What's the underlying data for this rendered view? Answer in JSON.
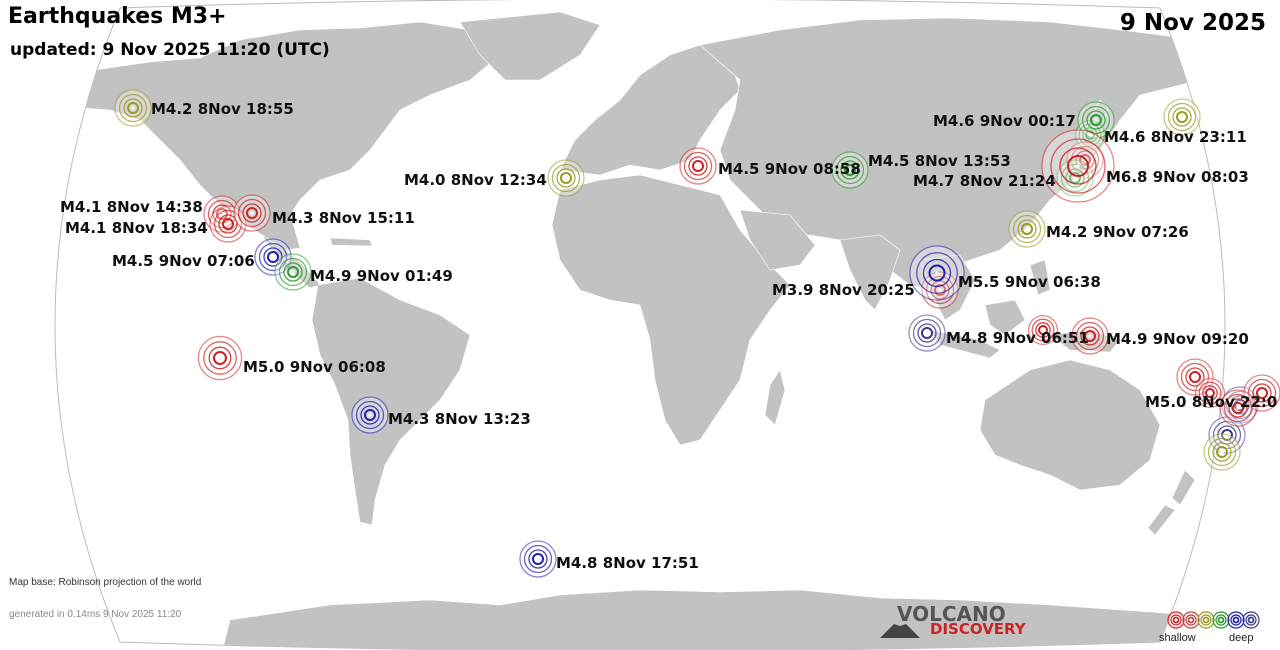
{
  "title": "Earthquakes M3+",
  "updated": "updated:  9 Nov 2025 11:20 (UTC)",
  "date": "9 Nov 2025",
  "map_base": "Map base: Robinson projection of the world",
  "generated": "generated in 0.14ms  9 Nov 2025 11:20",
  "logo": {
    "line1": "VOLCANO",
    "line2": "DISCOVERY"
  },
  "legend": {
    "shallow": "shallow",
    "deep": "deep",
    "colors": [
      "#cc2222",
      "#c04040",
      "#9a9a20",
      "#2a9a2a",
      "#2020b0",
      "#3a3a8a"
    ]
  },
  "colors": {
    "land": "#c2c2c2",
    "ocean": "#ffffff",
    "outline": "#bbbbbb"
  },
  "quakes": [
    {
      "label": "M4.2  8Nov 18:55",
      "color": "#9a9a20"
    },
    {
      "label": "M4.0  8Nov 12:34",
      "color": "#9a9a20"
    },
    {
      "label": "M4.5  9Nov 08:58",
      "color": "#cc2222"
    },
    {
      "label": "M4.5  8Nov 13:53",
      "color": "#2a9a2a"
    },
    {
      "label": "M4.6  9Nov 00:17",
      "color": "#2a9a2a"
    },
    {
      "label": "M4.6  8Nov 23:11",
      "color": "#9a9a20"
    },
    {
      "label": "M4.7  8Nov 21:24",
      "color": "#2a9a2a"
    },
    {
      "label": "M6.8  9Nov 08:03",
      "color": "#cc2222"
    },
    {
      "label": "M4.1  8Nov 14:38",
      "color": "#cc2222"
    },
    {
      "label": "M4.1  8Nov 18:34",
      "color": "#cc2222"
    },
    {
      "label": "M4.3  8Nov 15:11",
      "color": "#cc2222"
    },
    {
      "label": "M4.5  9Nov 07:06",
      "color": "#2020b0"
    },
    {
      "label": "M4.9  9Nov 01:49",
      "color": "#2a9a2a"
    },
    {
      "label": "M4.2  9Nov 07:26",
      "color": "#9a9a20"
    },
    {
      "label": "M5.5  9Nov 06:38",
      "color": "#cc2222"
    },
    {
      "label": "M3.9  8Nov 20:25",
      "color": "#2020b0"
    },
    {
      "label": "M4.8  9Nov 06:51",
      "color": "#3a3a8a"
    },
    {
      "label": "M4.9  9Nov 09:20",
      "color": "#cc2222"
    },
    {
      "label": "M5.0  9Nov 06:08",
      "color": "#cc2222"
    },
    {
      "label": "M4.3  8Nov 13:23",
      "color": "#2020b0"
    },
    {
      "label": "M5.0  8Nov 22:0",
      "color": "#cc2222"
    },
    {
      "label": "M4.8  8Nov 17:51",
      "color": "#2020b0"
    }
  ],
  "extra_quakes": [
    {
      "color": "#cc2222"
    },
    {
      "color": "#cc2222"
    },
    {
      "color": "#cc2222"
    },
    {
      "color": "#3a3a8a"
    },
    {
      "color": "#3a3a8a"
    },
    {
      "color": "#9a9a20"
    },
    {
      "color": "#cc2222"
    },
    {
      "color": "#2a9a2a"
    },
    {
      "color": "#cc2222"
    }
  ]
}
